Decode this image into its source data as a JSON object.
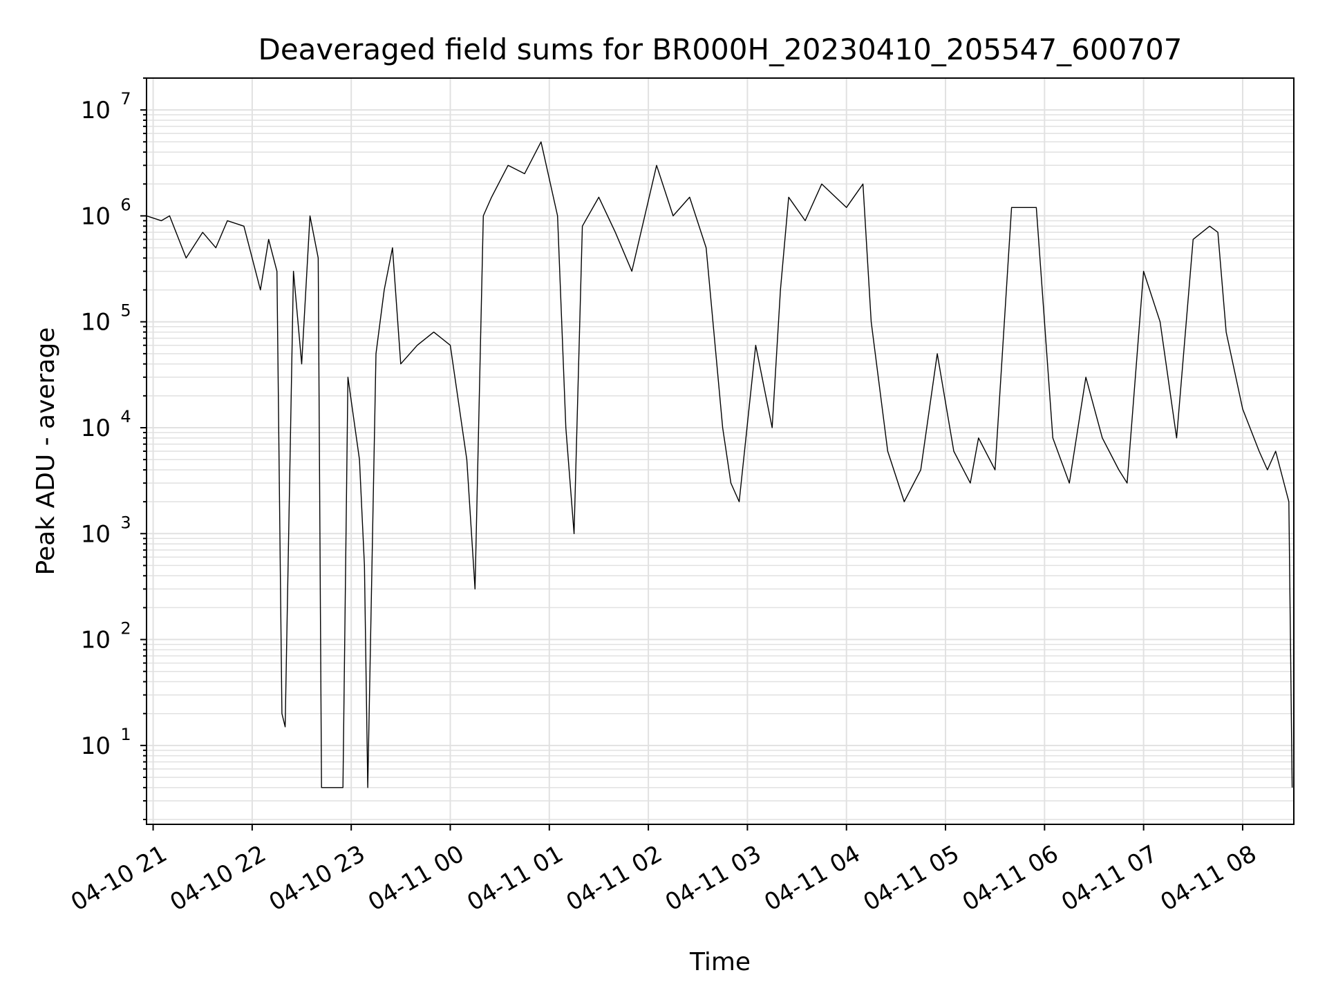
{
  "chart_data": {
    "type": "line",
    "title": "Deaveraged field sums for BR000H_20230410_205547_600707",
    "xlabel": "Time",
    "ylabel": "Peak ADU - average",
    "y_scale": "log",
    "ylim": [
      1.8,
      20000000
    ],
    "xlim": [
      "2023-04-10 20:56",
      "2023-04-11 08:31"
    ],
    "grid": "on (major and minor)",
    "legend": "none",
    "line_color": "#000000",
    "x_tick_labels": [
      "04-10 21",
      "04-10 22",
      "04-10 23",
      "04-11 00",
      "04-11 01",
      "04-11 02",
      "04-11 03",
      "04-11 04",
      "04-11 05",
      "04-11 06",
      "04-11 07",
      "04-11 08"
    ],
    "x_ticks": [
      "2023-04-10 21:00",
      "2023-04-10 22:00",
      "2023-04-10 23:00",
      "2023-04-11 00:00",
      "2023-04-11 01:00",
      "2023-04-11 02:00",
      "2023-04-11 03:00",
      "2023-04-11 04:00",
      "2023-04-11 05:00",
      "2023-04-11 06:00",
      "2023-04-11 07:00",
      "2023-04-11 08:00"
    ],
    "y_ticks": [
      10,
      100,
      1000,
      10000,
      100000,
      1000000,
      10000000
    ],
    "y_tick_labels": [
      {
        "base": "10",
        "exp": "1"
      },
      {
        "base": "10",
        "exp": "2"
      },
      {
        "base": "10",
        "exp": "3"
      },
      {
        "base": "10",
        "exp": "4"
      },
      {
        "base": "10",
        "exp": "5"
      },
      {
        "base": "10",
        "exp": "6"
      },
      {
        "base": "10",
        "exp": "7"
      }
    ],
    "x": [
      "2023-04-10 20:56",
      "2023-04-10 21:05",
      "2023-04-10 21:10",
      "2023-04-10 21:20",
      "2023-04-10 21:30",
      "2023-04-10 21:38",
      "2023-04-10 21:45",
      "2023-04-10 21:55",
      "2023-04-10 22:05",
      "2023-04-10 22:10",
      "2023-04-10 22:15",
      "2023-04-10 22:18",
      "2023-04-10 22:20",
      "2023-04-10 22:25",
      "2023-04-10 22:30",
      "2023-04-10 22:35",
      "2023-04-10 22:40",
      "2023-04-10 22:42",
      "2023-04-10 22:45",
      "2023-04-10 22:48",
      "2023-04-10 22:55",
      "2023-04-10 22:58",
      "2023-04-10 23:05",
      "2023-04-10 23:08",
      "2023-04-10 23:10",
      "2023-04-10 23:15",
      "2023-04-10 23:20",
      "2023-04-10 23:25",
      "2023-04-10 23:30",
      "2023-04-10 23:40",
      "2023-04-10 23:50",
      "2023-04-11 00:00",
      "2023-04-11 00:10",
      "2023-04-11 00:15",
      "2023-04-11 00:20",
      "2023-04-11 00:25",
      "2023-04-11 00:35",
      "2023-04-11 00:45",
      "2023-04-11 00:55",
      "2023-04-11 01:05",
      "2023-04-11 01:10",
      "2023-04-11 01:15",
      "2023-04-11 01:20",
      "2023-04-11 01:30",
      "2023-04-11 01:40",
      "2023-04-11 01:50",
      "2023-04-11 02:05",
      "2023-04-11 02:15",
      "2023-04-11 02:25",
      "2023-04-11 02:35",
      "2023-04-11 02:45",
      "2023-04-11 02:50",
      "2023-04-11 02:55",
      "2023-04-11 03:05",
      "2023-04-11 03:15",
      "2023-04-11 03:20",
      "2023-04-11 03:25",
      "2023-04-11 03:35",
      "2023-04-11 03:45",
      "2023-04-11 04:00",
      "2023-04-11 04:10",
      "2023-04-11 04:15",
      "2023-04-11 04:25",
      "2023-04-11 04:35",
      "2023-04-11 04:45",
      "2023-04-11 04:55",
      "2023-04-11 05:05",
      "2023-04-11 05:15",
      "2023-04-11 05:20",
      "2023-04-11 05:30",
      "2023-04-11 05:40",
      "2023-04-11 05:55",
      "2023-04-11 06:05",
      "2023-04-11 06:15",
      "2023-04-11 06:25",
      "2023-04-11 06:35",
      "2023-04-11 06:45",
      "2023-04-11 06:50",
      "2023-04-11 07:00",
      "2023-04-11 07:10",
      "2023-04-11 07:20",
      "2023-04-11 07:30",
      "2023-04-11 07:40",
      "2023-04-11 07:45",
      "2023-04-11 07:50",
      "2023-04-11 08:00",
      "2023-04-11 08:10",
      "2023-04-11 08:15",
      "2023-04-11 08:20",
      "2023-04-11 08:28",
      "2023-04-11 08:30"
    ],
    "values": [
      1000000,
      900000,
      1000000,
      400000,
      700000,
      500000,
      900000,
      800000,
      200000,
      600000,
      300000,
      20,
      15,
      300000,
      40000,
      1000000,
      400000,
      4,
      4,
      4,
      4,
      30000,
      5000,
      500,
      4,
      50000,
      200000,
      500000,
      40000,
      60000,
      80000,
      60000,
      5000,
      300,
      1000000,
      1500000,
      3000000,
      2500000,
      5000000,
      1000000,
      10000,
      1000,
      800000,
      1500000,
      700000,
      300000,
      3000000,
      1000000,
      1500000,
      500000,
      10000,
      3000,
      2000,
      60000,
      10000,
      200000,
      1500000,
      900000,
      2000000,
      1200000,
      2000000,
      100000,
      6000,
      2000,
      4000,
      50000,
      6000,
      3000,
      8000,
      4000,
      1200000,
      1200000,
      8000,
      3000,
      30000,
      8000,
      4000,
      3000,
      300000,
      100000,
      8000,
      600000,
      800000,
      700000,
      80000,
      15000,
      6000,
      4000,
      6000,
      2000,
      4
    ]
  }
}
